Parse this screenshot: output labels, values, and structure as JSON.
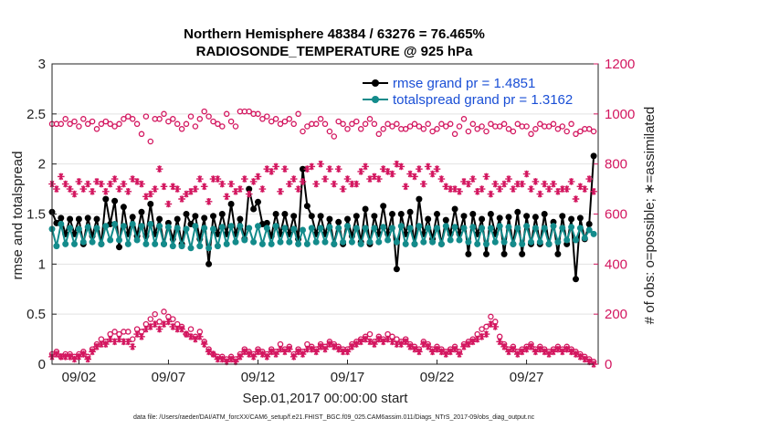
{
  "colors": {
    "rmse": "#000000",
    "spread": "#138b8b",
    "obs": "#d3165f",
    "legend_text": "#1a4fd6",
    "axis": "#222222"
  },
  "chart_data": {
    "type": "line",
    "title": "Northern Hemisphere 48384 / 63276 = 76.465%",
    "subtitle": "RADIOSONDE_TEMPERATURE @ 925 hPa",
    "xlabel": "Sep.01,2017 00:00:00 start",
    "ylabel_left": "rmse and totalspread",
    "ylabel_right": "# of obs: o=possible; ∗=assimilated",
    "xlim": [
      0.5,
      31
    ],
    "ylim_left": [
      0,
      3
    ],
    "ylim_right": [
      0,
      1200
    ],
    "xticks": [
      {
        "value": 2,
        "label": "09/02"
      },
      {
        "value": 7,
        "label": "09/07"
      },
      {
        "value": 12,
        "label": "09/12"
      },
      {
        "value": 17,
        "label": "09/17"
      },
      {
        "value": 22,
        "label": "09/22"
      },
      {
        "value": 27,
        "label": "09/27"
      }
    ],
    "yticks_left": [
      "0",
      "0.5",
      "1",
      "1.5",
      "2",
      "2.5",
      "3"
    ],
    "yticks_right": [
      "0",
      "200",
      "400",
      "600",
      "800",
      "1000",
      "1200"
    ],
    "legend": [
      {
        "label": "rmse grand pr = 1.4851",
        "series": "rmse"
      },
      {
        "label": "totalspread grand pr = 1.3162",
        "series": "totalspread"
      }
    ],
    "footnote": "data file: /Users/raeder/DAI/ATM_forcXX/CAM6_setup/f.e21.FHIST_BGC.f09_025.CAM6assim.011/Diags_NTrS_2017-09/obs_diag_output.nc",
    "x": [
      0.5,
      0.75,
      1.0,
      1.25,
      1.5,
      1.75,
      2.0,
      2.25,
      2.5,
      2.75,
      3.0,
      3.25,
      3.5,
      3.75,
      4.0,
      4.25,
      4.5,
      4.75,
      5.0,
      5.25,
      5.5,
      5.75,
      6.0,
      6.25,
      6.5,
      6.75,
      7.0,
      7.25,
      7.5,
      7.75,
      8.0,
      8.25,
      8.5,
      8.75,
      9.0,
      9.25,
      9.5,
      9.75,
      10.0,
      10.25,
      10.5,
      10.75,
      11.0,
      11.25,
      11.5,
      11.75,
      12.0,
      12.25,
      12.5,
      12.75,
      13.0,
      13.25,
      13.5,
      13.75,
      14.0,
      14.25,
      14.5,
      14.75,
      15.0,
      15.25,
      15.5,
      15.75,
      16.0,
      16.25,
      16.5,
      16.75,
      17.0,
      17.25,
      17.5,
      17.75,
      18.0,
      18.25,
      18.5,
      18.75,
      19.0,
      19.25,
      19.5,
      19.75,
      20.0,
      20.25,
      20.5,
      20.75,
      21.0,
      21.25,
      21.5,
      21.75,
      22.0,
      22.25,
      22.5,
      22.75,
      23.0,
      23.25,
      23.5,
      23.75,
      24.0,
      24.25,
      24.5,
      24.75,
      25.0,
      25.25,
      25.5,
      25.75,
      26.0,
      26.25,
      26.5,
      26.75,
      27.0,
      27.25,
      27.5,
      27.75,
      28.0,
      28.25,
      28.5,
      28.75,
      29.0,
      29.25,
      29.5,
      29.75,
      30.0,
      30.25,
      30.5,
      30.75
    ],
    "series": [
      {
        "name": "rmse",
        "axis": "left",
        "marker": "filled-circle",
        "values": [
          1.52,
          1.41,
          1.46,
          1.3,
          1.45,
          1.3,
          1.45,
          1.2,
          1.46,
          1.28,
          1.45,
          1.2,
          1.65,
          1.4,
          1.63,
          1.17,
          1.57,
          1.3,
          1.47,
          1.28,
          1.52,
          1.28,
          1.6,
          1.3,
          1.45,
          1.2,
          1.41,
          1.25,
          1.45,
          1.2,
          1.5,
          1.4,
          1.48,
          1.25,
          1.46,
          1.0,
          1.48,
          1.3,
          1.5,
          1.3,
          1.6,
          1.3,
          1.45,
          1.25,
          1.75,
          1.55,
          1.62,
          1.4,
          1.41,
          1.28,
          1.5,
          1.3,
          1.5,
          1.3,
          1.48,
          1.25,
          1.95,
          1.58,
          1.48,
          1.3,
          1.48,
          1.3,
          1.45,
          1.2,
          1.42,
          1.2,
          1.45,
          1.28,
          1.48,
          1.22,
          1.55,
          1.2,
          1.48,
          1.3,
          1.58,
          1.3,
          1.5,
          0.95,
          1.5,
          1.3,
          1.52,
          1.2,
          1.65,
          1.3,
          1.45,
          1.25,
          1.5,
          1.2,
          1.44,
          1.3,
          1.55,
          1.3,
          1.48,
          1.1,
          1.5,
          1.3,
          1.45,
          1.1,
          1.5,
          1.3,
          1.46,
          1.1,
          1.47,
          1.2,
          1.52,
          1.1,
          1.48,
          1.2,
          1.47,
          1.2,
          1.5,
          1.2,
          1.42,
          1.1,
          1.48,
          1.2,
          1.45,
          0.85,
          1.46,
          1.25,
          1.4,
          2.08
        ]
      },
      {
        "name": "totalspread",
        "axis": "left",
        "marker": "filled-circle",
        "values": [
          1.35,
          1.18,
          1.4,
          1.2,
          1.36,
          1.2,
          1.35,
          1.22,
          1.37,
          1.22,
          1.36,
          1.2,
          1.38,
          1.24,
          1.4,
          1.24,
          1.38,
          1.2,
          1.4,
          1.24,
          1.38,
          1.2,
          1.4,
          1.2,
          1.38,
          1.2,
          1.37,
          1.18,
          1.36,
          1.18,
          1.35,
          1.16,
          1.38,
          1.18,
          1.36,
          1.16,
          1.35,
          1.18,
          1.37,
          1.2,
          1.38,
          1.22,
          1.38,
          1.24,
          1.36,
          1.22,
          1.38,
          1.2,
          1.36,
          1.2,
          1.38,
          1.22,
          1.36,
          1.22,
          1.35,
          1.2,
          1.34,
          1.2,
          1.36,
          1.22,
          1.36,
          1.22,
          1.37,
          1.2,
          1.36,
          1.22,
          1.38,
          1.22,
          1.36,
          1.2,
          1.36,
          1.22,
          1.36,
          1.22,
          1.37,
          1.24,
          1.36,
          1.22,
          1.38,
          1.2,
          1.36,
          1.2,
          1.38,
          1.22,
          1.36,
          1.22,
          1.36,
          1.2,
          1.38,
          1.24,
          1.37,
          1.24,
          1.36,
          1.22,
          1.37,
          1.2,
          1.36,
          1.2,
          1.36,
          1.22,
          1.38,
          1.22,
          1.37,
          1.2,
          1.36,
          1.2,
          1.38,
          1.22,
          1.36,
          1.22,
          1.36,
          1.2,
          1.38,
          1.22,
          1.36,
          1.24,
          1.37,
          1.24,
          1.36,
          1.26,
          1.34,
          1.3
        ]
      },
      {
        "name": "possible_obs",
        "axis": "right",
        "marker": "open-circle",
        "values": [
          960,
          960,
          960,
          980,
          960,
          970,
          950,
          980,
          960,
          970,
          940,
          960,
          970,
          960,
          950,
          960,
          980,
          990,
          980,
          960,
          920,
          990,
          890,
          980,
          980,
          1000,
          970,
          980,
          960,
          940,
          960,
          990,
          950,
          980,
          1010,
          990,
          970,
          960,
          950,
          1000,
          970,
          950,
          1010,
          1010,
          1010,
          1000,
          1000,
          980,
          990,
          970,
          980,
          960,
          970,
          980,
          960,
          1000,
          930,
          950,
          960,
          960,
          980,
          960,
          930,
          910,
          970,
          960,
          940,
          960,
          970,
          940,
          960,
          980,
          960,
          920,
          940,
          960,
          950,
          960,
          940,
          940,
          950,
          960,
          950,
          940,
          960,
          930,
          940,
          960,
          950,
          960,
          920,
          950,
          980,
          930,
          960,
          940,
          950,
          930,
          960,
          950,
          950,
          960,
          940,
          930,
          960,
          950,
          950,
          920,
          940,
          960,
          950,
          950,
          960,
          940,
          950,
          930,
          960,
          920,
          930,
          940,
          940,
          930
        ]
      },
      {
        "name": "assimilated_obs",
        "axis": "right",
        "marker": "asterisk",
        "values": [
          720,
          700,
          750,
          720,
          700,
          680,
          730,
          700,
          720,
          690,
          730,
          720,
          690,
          720,
          740,
          700,
          720,
          690,
          740,
          730,
          720,
          670,
          680,
          700,
          780,
          710,
          640,
          710,
          700,
          660,
          680,
          690,
          700,
          740,
          710,
          650,
          740,
          740,
          720,
          670,
          720,
          690,
          700,
          740,
          680,
          730,
          750,
          700,
          780,
          770,
          790,
          690,
          780,
          720,
          740,
          700,
          730,
          780,
          790,
          720,
          800,
          740,
          780,
          720,
          780,
          700,
          740,
          720,
          720,
          770,
          790,
          740,
          750,
          740,
          780,
          770,
          760,
          800,
          790,
          710,
          760,
          750,
          780,
          720,
          790,
          760,
          780,
          740,
          710,
          700,
          700,
          690,
          730,
          720,
          740,
          690,
          700,
          750,
          680,
          720,
          700,
          720,
          740,
          700,
          720,
          720,
          760,
          700,
          730,
          680,
          720,
          700,
          720,
          690,
          700,
          700,
          730,
          660,
          710,
          700,
          740,
          690
        ]
      },
      {
        "name": "possible_obs_low",
        "axis": "right",
        "marker": "open-circle",
        "values": [
          40,
          50,
          30,
          40,
          40,
          30,
          40,
          50,
          30,
          60,
          80,
          100,
          90,
          120,
          130,
          120,
          130,
          130,
          100,
          140,
          130,
          160,
          180,
          200,
          170,
          210,
          190,
          180,
          160,
          150,
          120,
          140,
          110,
          130,
          90,
          60,
          40,
          30,
          30,
          20,
          30,
          20,
          40,
          60,
          50,
          40,
          60,
          50,
          40,
          60,
          50,
          80,
          60,
          70,
          40,
          60,
          50,
          80,
          70,
          60,
          80,
          70,
          90,
          80,
          70,
          60,
          60,
          80,
          90,
          100,
          110,
          120,
          90,
          110,
          100,
          120,
          110,
          100,
          90,
          100,
          80,
          70,
          60,
          90,
          80,
          60,
          70,
          60,
          50,
          60,
          70,
          50,
          80,
          90,
          100,
          120,
          140,
          150,
          190,
          170,
          110,
          80,
          60,
          70,
          50,
          60,
          70,
          80,
          60,
          70,
          60,
          50,
          60,
          70,
          60,
          70,
          60,
          50,
          40,
          30,
          20,
          10
        ]
      },
      {
        "name": "assimilated_obs_low",
        "axis": "right",
        "marker": "asterisk",
        "values": [
          30,
          40,
          30,
          30,
          30,
          20,
          30,
          40,
          20,
          50,
          70,
          80,
          80,
          100,
          90,
          100,
          90,
          90,
          70,
          120,
          110,
          140,
          150,
          160,
          140,
          160,
          170,
          150,
          140,
          140,
          120,
          110,
          100,
          110,
          80,
          50,
          40,
          20,
          20,
          10,
          20,
          10,
          30,
          50,
          40,
          30,
          50,
          40,
          30,
          50,
          40,
          60,
          50,
          60,
          30,
          50,
          40,
          60,
          60,
          50,
          70,
          60,
          80,
          70,
          60,
          50,
          50,
          70,
          80,
          90,
          100,
          90,
          80,
          100,
          90,
          100,
          90,
          80,
          80,
          90,
          70,
          60,
          50,
          80,
          70,
          50,
          60,
          50,
          40,
          50,
          60,
          40,
          70,
          80,
          90,
          100,
          110,
          120,
          160,
          150,
          90,
          70,
          50,
          60,
          40,
          50,
          60,
          70,
          50,
          60,
          50,
          40,
          50,
          60,
          50,
          60,
          50,
          40,
          30,
          20,
          10,
          0
        ]
      }
    ]
  }
}
